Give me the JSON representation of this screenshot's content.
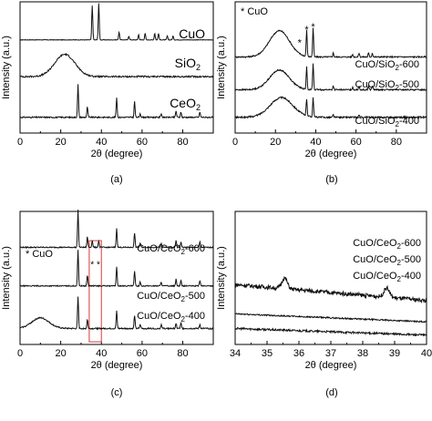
{
  "chart_data": [
    {
      "panel": "(a)",
      "type": "line",
      "xlabel": "2θ (degree)",
      "ylabel": "Intensity (a.u.)",
      "xlim": [
        0,
        95
      ],
      "xticks": [
        "0",
        "20",
        "40",
        "60",
        "80"
      ],
      "series": [
        {
          "name": "CuO",
          "base": 0.71,
          "peaks": [
            [
              35.5,
              0.26
            ],
            [
              38.7,
              0.28
            ],
            [
              48.7,
              0.06
            ],
            [
              53.5,
              0.03
            ],
            [
              58.3,
              0.04
            ],
            [
              61.5,
              0.05
            ],
            [
              66.2,
              0.05
            ],
            [
              68.1,
              0.05
            ],
            [
              72.4,
              0.03
            ],
            [
              75.2,
              0.03
            ]
          ],
          "hump": null,
          "noise": 0.004
        },
        {
          "name": "SiO2",
          "base": 0.43,
          "peaks": [],
          "hump": [
            22,
            7,
            0.17
          ],
          "noise": 0.012
        },
        {
          "name": "CeO2",
          "base": 0.12,
          "peaks": [
            [
              28.5,
              0.25
            ],
            [
              33.1,
              0.08
            ],
            [
              47.5,
              0.15
            ],
            [
              56.3,
              0.12
            ],
            [
              59.1,
              0.03
            ],
            [
              69.4,
              0.03
            ],
            [
              76.7,
              0.05
            ],
            [
              79.1,
              0.04
            ],
            [
              88.4,
              0.04
            ]
          ],
          "hump": null,
          "noise": 0.01
        }
      ],
      "labels": [
        {
          "text": "CuO",
          "sub": ""
        },
        {
          "text": "SiO",
          "sub": "2"
        },
        {
          "text": "CeO",
          "sub": "2"
        }
      ]
    },
    {
      "panel": "(b)",
      "type": "line",
      "xlabel": "2θ (degree)",
      "ylabel": "Intensity (a.u.)",
      "xlim": [
        0,
        95
      ],
      "xticks": [
        "0",
        "20",
        "40",
        "60",
        "80"
      ],
      "annotation": "* CuO",
      "series": [
        {
          "name": "CuO/SiO2-600",
          "base": 0.58,
          "peaks": [
            [
              35.5,
              0.2
            ],
            [
              38.7,
              0.22
            ],
            [
              48.7,
              0.03
            ],
            [
              58.3,
              0.02
            ],
            [
              61.5,
              0.03
            ],
            [
              66.2,
              0.03
            ],
            [
              68.1,
              0.03
            ]
          ],
          "hump": [
            22,
            7,
            0.2
          ],
          "noise": 0.01
        },
        {
          "name": "CuO/SiO2-500",
          "base": 0.33,
          "peaks": [
            [
              35.5,
              0.17
            ],
            [
              38.7,
              0.2
            ],
            [
              48.7,
              0.03
            ],
            [
              58.3,
              0.02
            ],
            [
              61.5,
              0.03
            ],
            [
              66.2,
              0.03
            ],
            [
              68.1,
              0.03
            ]
          ],
          "hump": [
            22,
            7,
            0.15
          ],
          "noise": 0.01
        },
        {
          "name": "CuO/SiO2-400",
          "base": 0.12,
          "peaks": [
            [
              35.5,
              0.13
            ],
            [
              38.7,
              0.15
            ],
            [
              48.7,
              0.02
            ],
            [
              61.5,
              0.02
            ]
          ],
          "hump": [
            23,
            8,
            0.15
          ],
          "noise": 0.012
        }
      ],
      "labels": [
        {
          "text": "CuO/SiO",
          "sub": "2",
          "tail": "-600"
        },
        {
          "text": "CuO/SiO",
          "sub": "2",
          "tail": "-500"
        },
        {
          "text": "CuO/SiO",
          "sub": "2",
          "tail": "-400"
        }
      ]
    },
    {
      "panel": "(c)",
      "type": "line",
      "xlabel": "2θ (degree)",
      "ylabel": "Intensity (a.u.)",
      "xlim": [
        0,
        95
      ],
      "xticks": [
        "0",
        "20",
        "40",
        "60",
        "80"
      ],
      "annotation": "* CuO",
      "highlight": [
        34,
        40
      ],
      "series": [
        {
          "name": "CuO/CeO2-600",
          "base": 0.73,
          "peaks": [
            [
              28.5,
              0.28
            ],
            [
              33.1,
              0.08
            ],
            [
              35.5,
              0.05
            ],
            [
              38.7,
              0.05
            ],
            [
              47.5,
              0.14
            ],
            [
              56.3,
              0.11
            ],
            [
              59.1,
              0.03
            ],
            [
              69.4,
              0.03
            ],
            [
              76.7,
              0.05
            ],
            [
              79.1,
              0.04
            ],
            [
              88.4,
              0.04
            ]
          ],
          "hump": null,
          "noise": 0.008
        },
        {
          "name": "CuO/CeO2-500",
          "base": 0.44,
          "peaks": [
            [
              28.5,
              0.27
            ],
            [
              33.1,
              0.08
            ],
            [
              47.5,
              0.14
            ],
            [
              56.3,
              0.11
            ],
            [
              59.1,
              0.03
            ],
            [
              69.4,
              0.03
            ],
            [
              76.7,
              0.05
            ],
            [
              79.1,
              0.04
            ],
            [
              88.4,
              0.04
            ]
          ],
          "hump": null,
          "noise": 0.008
        },
        {
          "name": "CuO/CeO2-400",
          "base": 0.12,
          "peaks": [
            [
              28.5,
              0.24
            ],
            [
              33.1,
              0.07
            ],
            [
              47.5,
              0.13
            ],
            [
              56.3,
              0.1
            ],
            [
              59.1,
              0.03
            ],
            [
              69.4,
              0.03
            ],
            [
              76.7,
              0.04
            ],
            [
              79.1,
              0.04
            ],
            [
              88.4,
              0.03
            ]
          ],
          "hump": [
            10,
            6,
            0.08
          ],
          "noise": 0.01
        }
      ],
      "labels": [
        {
          "text": "CuO/CeO",
          "sub": "2",
          "tail": "-600"
        },
        {
          "text": "CuO/CeO",
          "sub": "2",
          "tail": "-500"
        },
        {
          "text": "CuO/CeO",
          "sub": "2",
          "tail": "-400"
        }
      ]
    },
    {
      "panel": "(d)",
      "type": "line",
      "xlabel": "2θ (degree)",
      "ylabel": "Intensity (a.u.)",
      "xlim": [
        34,
        40
      ],
      "xticks": [
        "34",
        "35",
        "36",
        "37",
        "38",
        "39",
        "40"
      ],
      "series": [
        {
          "name": "CuO/CeO2-600",
          "base": 0.45,
          "peaks": [
            [
              35.55,
              0.08
            ],
            [
              38.75,
              0.07
            ]
          ],
          "slope": -0.12,
          "noise": 0.03
        },
        {
          "name": "CuO/CeO2-500",
          "base": 0.23,
          "peaks": [],
          "slope": -0.06,
          "noise": 0.01
        },
        {
          "name": "CuO/CeO2-400",
          "base": 0.12,
          "peaks": [],
          "slope": -0.05,
          "noise": 0.015
        }
      ],
      "labels": [
        {
          "text": "CuO/CeO",
          "sub": "2",
          "tail": "-600"
        },
        {
          "text": "CuO/CeO",
          "sub": "2",
          "tail": "-500"
        },
        {
          "text": "CuO/CeO",
          "sub": "2",
          "tail": "-400"
        }
      ]
    }
  ]
}
